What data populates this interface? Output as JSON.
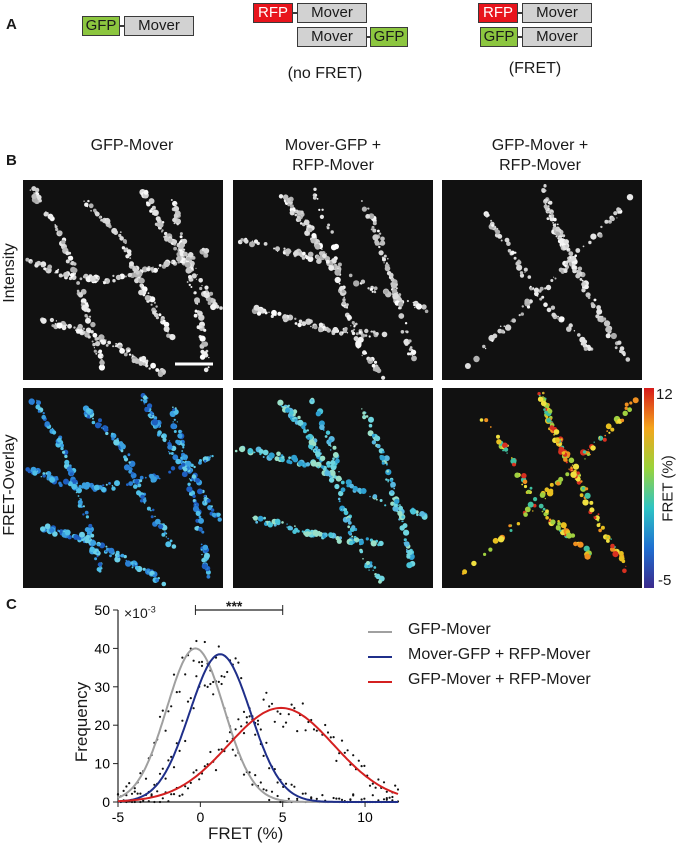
{
  "panel_a": {
    "letter": "A",
    "construct1": {
      "gfp": "GFP",
      "mover": "Mover"
    },
    "construct2": {
      "rfp": "RFP",
      "mover_top": "Mover",
      "mover_bottom": "Mover",
      "gfp": "GFP",
      "caption": "(no FRET)"
    },
    "construct3": {
      "rfp": "RFP",
      "mover_top": "Mover",
      "gfp": "GFP",
      "mover_bottom": "Mover",
      "caption": "(FRET)"
    },
    "colors": {
      "gfp": "#8cc63f",
      "rfp": "#e8141c",
      "mover": "#d2d2d2"
    }
  },
  "panel_b": {
    "letter": "B",
    "columns": [
      "GFP-Mover",
      "Mover-GFP +\nRFP-Mover",
      "GFP-Mover +\nRFP-Mover"
    ],
    "rows": [
      "Intensity",
      "FRET-Overlay"
    ],
    "colorbar": {
      "max": "12",
      "min": "-5",
      "label": "FRET (%)"
    }
  },
  "panel_c": {
    "letter": "C",
    "significance": "***",
    "chart_data": {
      "type": "line",
      "xlabel": "FRET (%)",
      "ylabel": "Frequency",
      "y_multiplier": "×10-3",
      "xlim": [
        -5,
        12
      ],
      "ylim": [
        0,
        50
      ],
      "xticks": [
        -5,
        0,
        5,
        10
      ],
      "yticks": [
        0,
        10,
        20,
        30,
        40,
        50
      ],
      "legend": "top-right",
      "series": [
        {
          "name": "GFP-Mover",
          "color": "#a0a0a0",
          "mu": -0.3,
          "sigma": 1.75,
          "amp": 40
        },
        {
          "name": "Mover-GFP + RFP-Mover",
          "color": "#1f2f8a",
          "mu": 1.2,
          "sigma": 1.85,
          "amp": 38.5
        },
        {
          "name": "GFP-Mover + RFP-Mover",
          "color": "#d42020",
          "mu": 4.9,
          "sigma": 3.2,
          "amp": 24.5
        }
      ]
    }
  }
}
